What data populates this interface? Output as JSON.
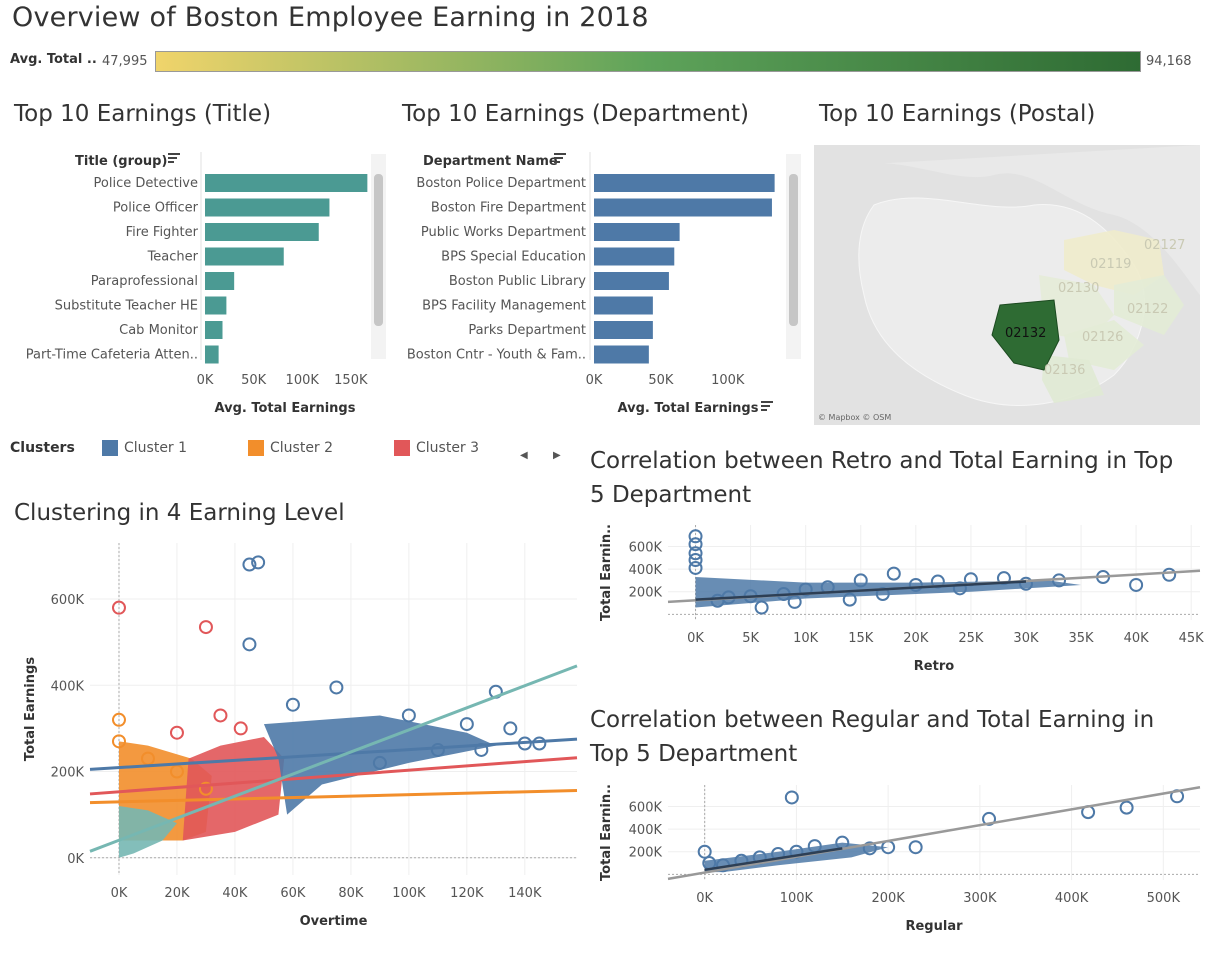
{
  "header": {
    "title": "Overview of Boston Employee Earning in 2018"
  },
  "color_legend": {
    "label": "Avg. Total ..",
    "min_label": "47,995",
    "max_label": "94,168",
    "colors": [
      "#f0d46b",
      "#5ea35a",
      "#2e6b33"
    ]
  },
  "sections": {
    "title_chart": "Top 10 Earnings (Title)",
    "dept_chart": "Top 10 Earnings (Department)",
    "postal_map": "Top 10 Earnings (Postal)",
    "cluster_chart": "Clustering in 4 Earning Level",
    "retro_chart": "Correlation between Retro and Total Earning in Top 5 Department",
    "regular_chart": "Correlation between Regular and Total Earning in Top 5 Department"
  },
  "map": {
    "attribution": "© Mapbox © OSM",
    "highlight": "02132",
    "postals": [
      "02127",
      "02119",
      "02130",
      "02122",
      "02126",
      "02136"
    ],
    "highlight_color": "#2e6b33"
  },
  "clusters_legend": {
    "label": "Clusters",
    "items": [
      {
        "name": "Cluster 1",
        "color": "#4e79a7"
      },
      {
        "name": "Cluster 2",
        "color": "#f28e2b"
      },
      {
        "name": "Cluster 3",
        "color": "#e15759"
      }
    ],
    "prev": "◀",
    "next": "▶"
  },
  "chart_data": [
    {
      "type": "bar",
      "orientation": "horizontal",
      "header": "Title (group)",
      "categories": [
        "Police Detective",
        "Police Officer",
        "Fire Fighter",
        "Teacher",
        "Paraprofessional",
        "Substitute Teacher HE",
        "Cab Monitor",
        "Part-Time Cafeteria Atten.."
      ],
      "values": [
        167000,
        128000,
        117000,
        81000,
        30000,
        22000,
        18000,
        14000
      ],
      "xlabel": "Avg. Total Earnings",
      "xticks": [
        "0K",
        "50K",
        "100K",
        "150K"
      ],
      "xlim": [
        0,
        180000
      ],
      "color": "#4b9a93"
    },
    {
      "type": "bar",
      "orientation": "horizontal",
      "header": "Department Name",
      "categories": [
        "Boston Police Department",
        "Boston Fire Department",
        "Public Works Department",
        "BPS Special Education",
        "Boston Public Library",
        "BPS Facility Management",
        "Parks Department",
        "Boston Cntr - Youth & Fam.."
      ],
      "values": [
        135000,
        133000,
        64000,
        60000,
        56000,
        44000,
        44000,
        41000
      ],
      "xlabel": "Avg. Total Earnings",
      "xticks": [
        "0K",
        "50K",
        "100K"
      ],
      "xlim": [
        0,
        145000
      ],
      "color": "#4e79a7"
    },
    {
      "type": "scatter",
      "xlabel": "Overtime",
      "ylabel": "Total Earnings",
      "xticks": [
        "0K",
        "20K",
        "40K",
        "60K",
        "80K",
        "100K",
        "120K",
        "140K"
      ],
      "yticks": [
        "0K",
        "200K",
        "400K",
        "600K"
      ],
      "xlim": [
        -10000,
        158000
      ],
      "ylim": [
        -40000,
        730000
      ],
      "series": [
        {
          "name": "Cluster 1",
          "color": "#4e79a7",
          "points": [
            [
              45000,
              680000
            ],
            [
              48000,
              685000
            ],
            [
              45000,
              495000
            ],
            [
              75000,
              395000
            ],
            [
              130000,
              385000
            ],
            [
              60000,
              355000
            ],
            [
              100000,
              330000
            ],
            [
              120000,
              310000
            ],
            [
              135000,
              300000
            ],
            [
              110000,
              250000
            ],
            [
              145000,
              265000
            ],
            [
              125000,
              250000
            ],
            [
              140000,
              265000
            ],
            [
              90000,
              220000
            ]
          ]
        },
        {
          "name": "Cluster 2",
          "color": "#f28e2b",
          "points": [
            [
              0,
              320000
            ],
            [
              0,
              270000
            ],
            [
              10000,
              230000
            ],
            [
              20000,
              200000
            ],
            [
              30000,
              160000
            ]
          ]
        },
        {
          "name": "Cluster 3",
          "color": "#e15759",
          "points": [
            [
              0,
              580000
            ],
            [
              30000,
              535000
            ],
            [
              35000,
              330000
            ],
            [
              20000,
              290000
            ],
            [
              42000,
              300000
            ]
          ]
        }
      ],
      "trend_lines": [
        {
          "color": "#4e79a7",
          "from": [
            -10000,
            205000
          ],
          "to": [
            158000,
            275000
          ]
        },
        {
          "color": "#e15759",
          "from": [
            -10000,
            148000
          ],
          "to": [
            158000,
            232000
          ]
        },
        {
          "color": "#f28e2b",
          "from": [
            -10000,
            128000
          ],
          "to": [
            158000,
            156000
          ]
        },
        {
          "color": "#76b7b2",
          "from": [
            -10000,
            15000
          ],
          "to": [
            158000,
            445000
          ]
        }
      ]
    },
    {
      "type": "scatter",
      "xlabel": "Retro",
      "ylabel": "Total Earnin..",
      "xticks": [
        "0K",
        "5K",
        "10K",
        "15K",
        "20K",
        "25K",
        "30K",
        "35K",
        "40K",
        "45K"
      ],
      "yticks": [
        "200K",
        "400K",
        "600K"
      ],
      "xlim": [
        -2500,
        45800
      ],
      "ylim": [
        -50000,
        790000
      ],
      "color": "#4e79a7",
      "points": [
        [
          0,
          690000
        ],
        [
          0,
          620000
        ],
        [
          0,
          540000
        ],
        [
          0,
          480000
        ],
        [
          0,
          410000
        ],
        [
          40000,
          260000
        ],
        [
          43000,
          350000
        ],
        [
          37000,
          330000
        ],
        [
          33000,
          300000
        ],
        [
          30000,
          270000
        ],
        [
          28000,
          320000
        ],
        [
          25000,
          310000
        ],
        [
          22000,
          290000
        ],
        [
          20000,
          260000
        ],
        [
          18000,
          360000
        ],
        [
          15000,
          300000
        ],
        [
          12000,
          240000
        ],
        [
          10000,
          220000
        ],
        [
          8000,
          180000
        ],
        [
          5000,
          160000
        ],
        [
          3000,
          150000
        ],
        [
          2000,
          120000
        ],
        [
          6000,
          60000
        ],
        [
          9000,
          110000
        ],
        [
          14000,
          130000
        ],
        [
          17000,
          180000
        ],
        [
          24000,
          230000
        ]
      ],
      "trend_line": {
        "from": [
          -2500,
          110000
        ],
        "to": [
          45800,
          385000
        ]
      }
    },
    {
      "type": "scatter",
      "xlabel": "Regular",
      "ylabel": "Total Earnin..",
      "xticks": [
        "0K",
        "100K",
        "200K",
        "300K",
        "400K",
        "500K"
      ],
      "yticks": [
        "200K",
        "400K",
        "600K"
      ],
      "xlim": [
        -40000,
        540000
      ],
      "ylim": [
        -50000,
        790000
      ],
      "color": "#4e79a7",
      "points": [
        [
          95000,
          680000
        ],
        [
          515000,
          690000
        ],
        [
          460000,
          590000
        ],
        [
          418000,
          550000
        ],
        [
          310000,
          490000
        ],
        [
          230000,
          240000
        ],
        [
          200000,
          240000
        ],
        [
          180000,
          230000
        ],
        [
          150000,
          280000
        ],
        [
          120000,
          250000
        ],
        [
          100000,
          200000
        ],
        [
          80000,
          180000
        ],
        [
          60000,
          150000
        ],
        [
          40000,
          120000
        ],
        [
          20000,
          80000
        ],
        [
          0,
          200000
        ],
        [
          5000,
          100000
        ]
      ],
      "trend_line": {
        "from": [
          -40000,
          -40000
        ],
        "to": [
          540000,
          770000
        ]
      }
    }
  ]
}
